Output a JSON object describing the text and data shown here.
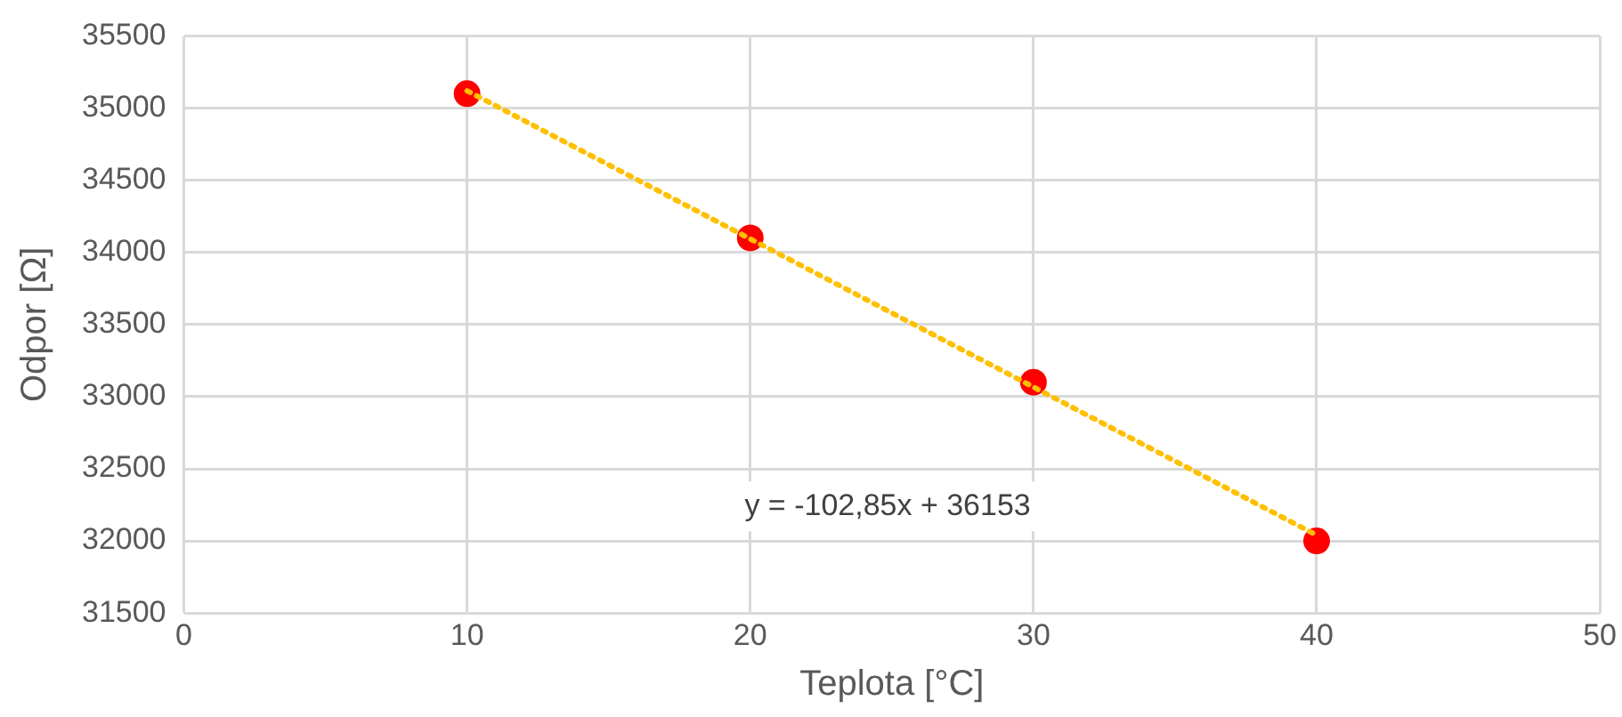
{
  "chart_data": {
    "type": "scatter",
    "xlabel": "Teplota [°C]",
    "ylabel": "Odpor [Ω]",
    "xlim": [
      0,
      50
    ],
    "xticks": [
      0,
      10,
      20,
      30,
      40,
      50
    ],
    "ylim": [
      31500,
      35500
    ],
    "yticks": [
      31500,
      32000,
      32500,
      33000,
      33500,
      34000,
      34500,
      35000,
      35500
    ],
    "grid": true,
    "legend": false,
    "marker": "circle",
    "series": [
      {
        "type": "scatter",
        "color": "#ff0000",
        "x": [
          10,
          20,
          30,
          40
        ],
        "values": [
          35100,
          34100,
          33100,
          32000
        ]
      },
      {
        "type": "line",
        "color": "#ffc000",
        "x": [
          10,
          40
        ],
        "values": [
          35120,
          32040
        ],
        "line_style": "dotted",
        "marker": "none"
      }
    ],
    "annotations": [
      "y = -102,85x + 36153"
    ]
  }
}
